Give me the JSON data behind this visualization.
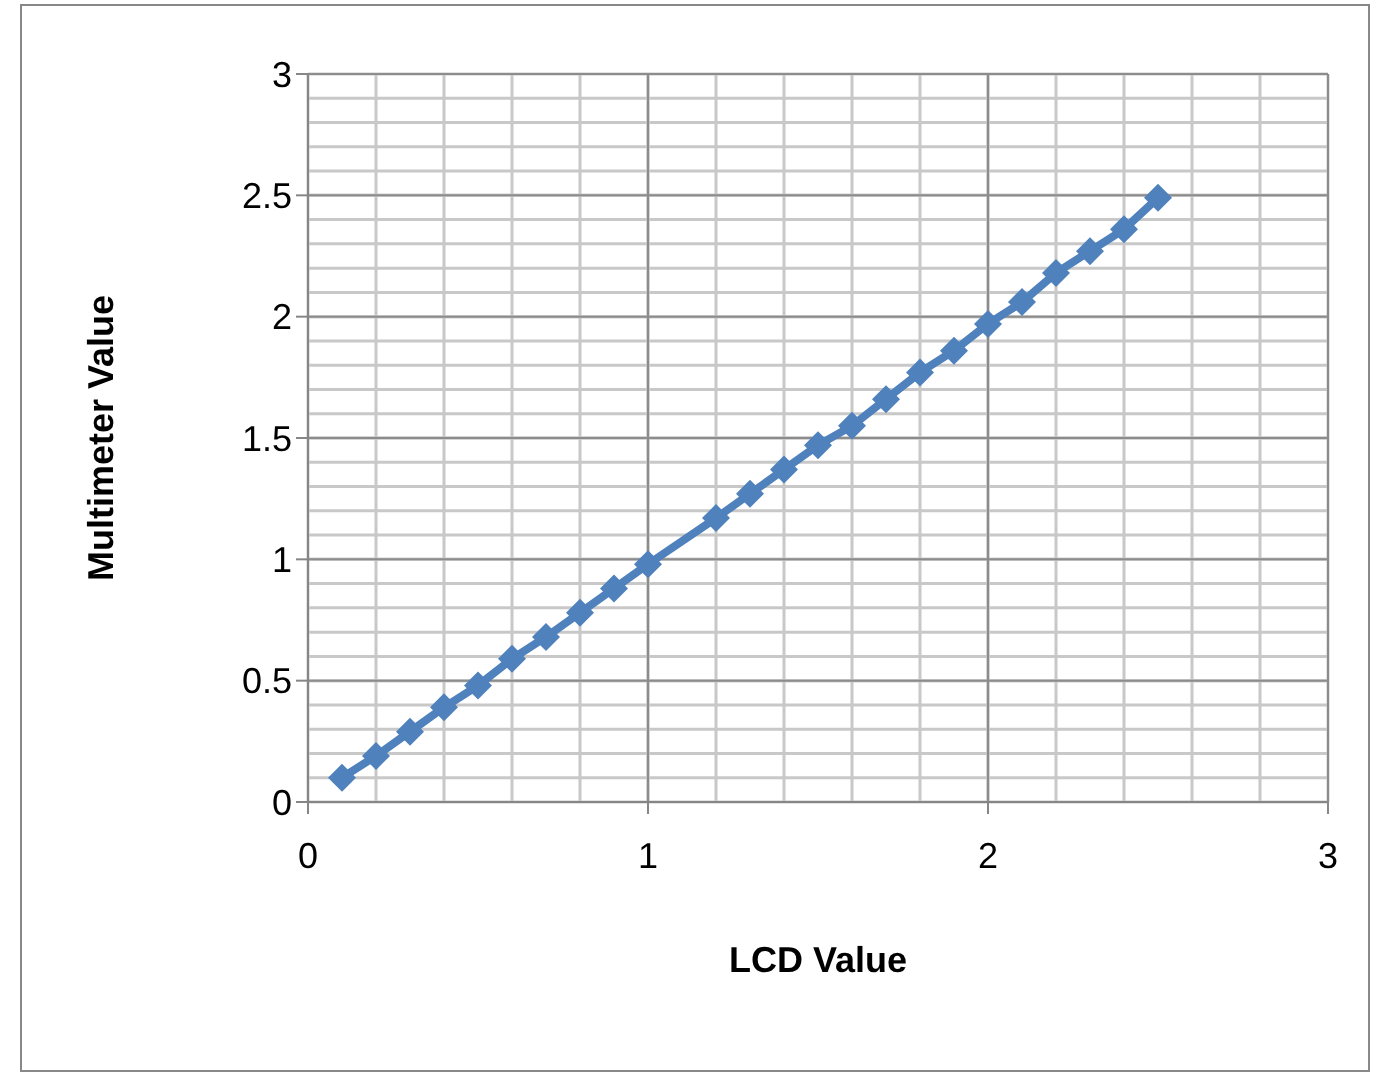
{
  "chart_data": {
    "type": "line",
    "xlabel": "LCD Value",
    "ylabel": "Multimeter Value",
    "x": [
      0.1,
      0.2,
      0.3,
      0.4,
      0.5,
      0.6,
      0.7,
      0.8,
      0.9,
      1.0,
      1.2,
      1.3,
      1.4,
      1.5,
      1.6,
      1.7,
      1.8,
      1.9,
      2.0,
      2.1,
      2.2,
      2.3,
      2.4,
      2.5
    ],
    "series": [
      {
        "color": "#4f81bd",
        "values": [
          0.1,
          0.19,
          0.29,
          0.39,
          0.48,
          0.59,
          0.68,
          0.78,
          0.88,
          0.98,
          1.17,
          1.27,
          1.37,
          1.47,
          1.55,
          1.66,
          1.77,
          1.86,
          1.97,
          2.06,
          2.18,
          2.27,
          2.36,
          2.49
        ]
      }
    ],
    "xlim": [
      0,
      3
    ],
    "xticks": [
      0,
      1,
      2,
      3
    ],
    "ylim": [
      0,
      3
    ],
    "yticks": [
      0,
      0.5,
      1,
      1.5,
      2,
      2.5,
      3
    ],
    "grid": true,
    "marker": "diamond",
    "line_style": "solid"
  }
}
